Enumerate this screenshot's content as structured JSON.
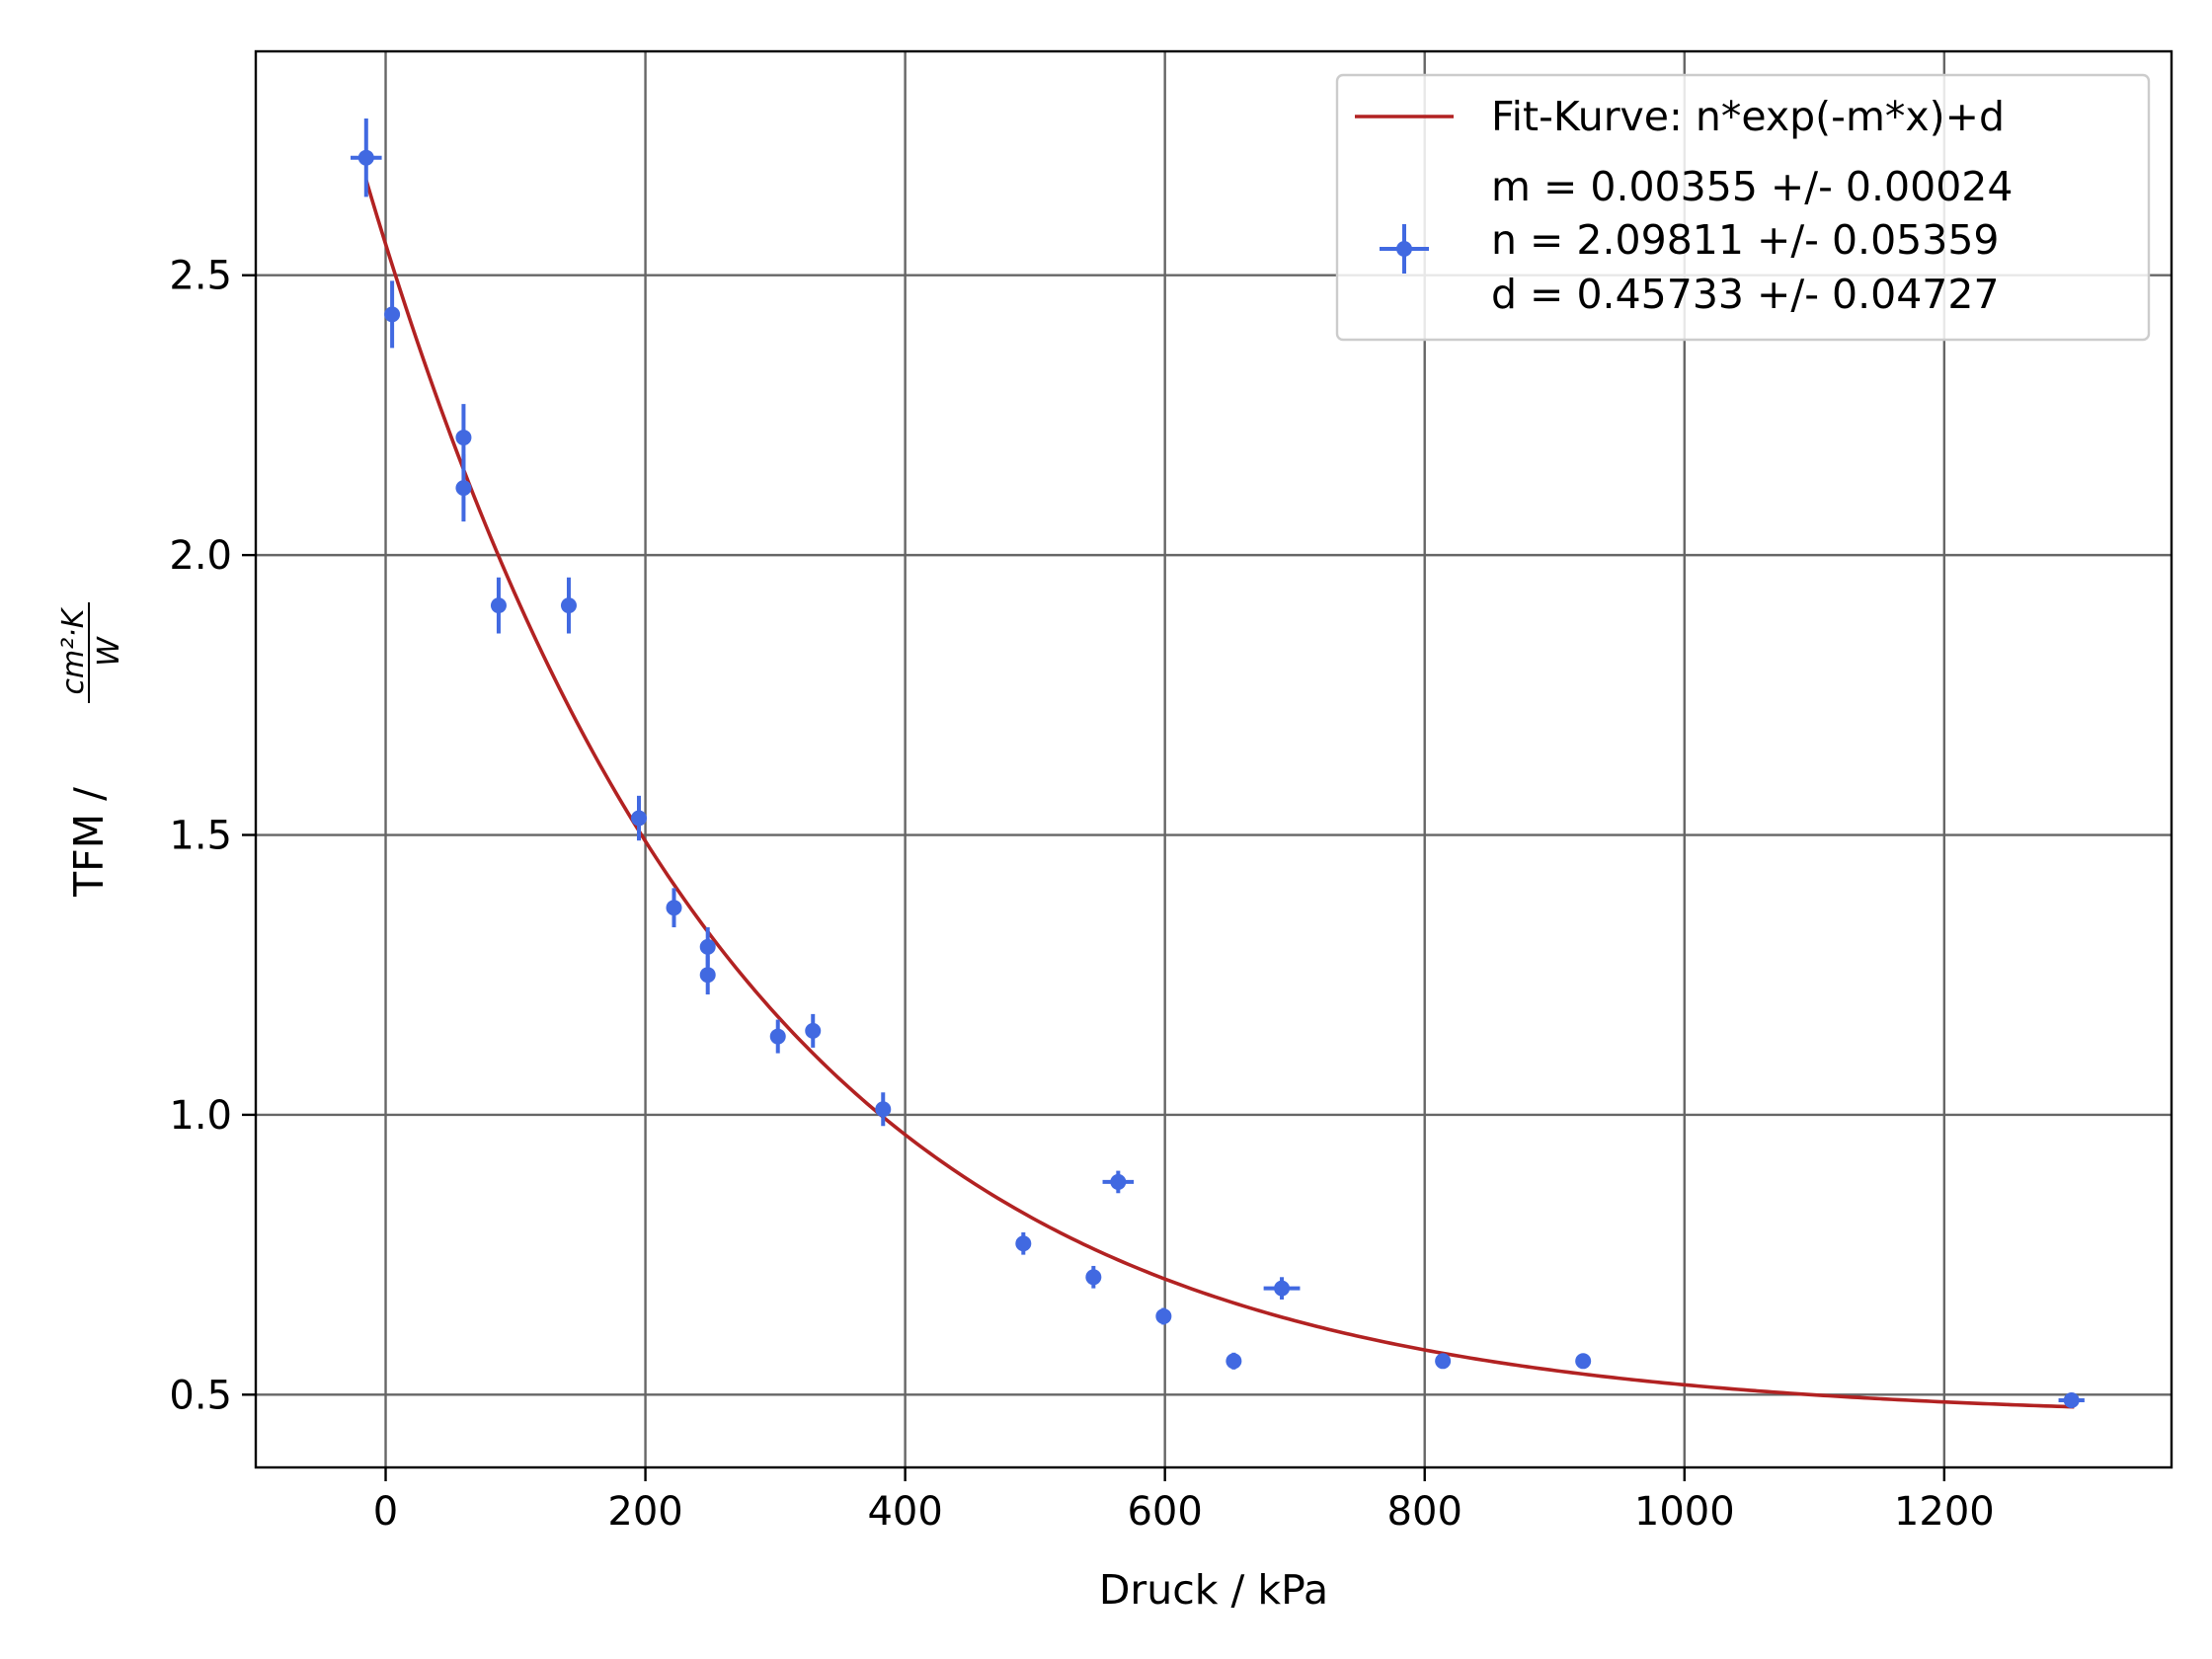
{
  "chart_data": {
    "type": "scatter",
    "xlabel": "Druck / kPa",
    "ylabel": "TFM /",
    "ylabel_fraction": {
      "numerator": "cm²·K",
      "denominator": "W"
    },
    "xlim": [
      -100,
      1375
    ],
    "ylim": [
      0.37,
      2.9
    ],
    "xticks": [
      0,
      200,
      400,
      600,
      800,
      1000,
      1200
    ],
    "xtick_labels": [
      "0",
      "200",
      "400",
      "600",
      "800",
      "1000",
      "1200"
    ],
    "yticks": [
      0.5,
      1.0,
      1.5,
      2.0,
      2.5
    ],
    "ytick_labels": [
      "0.5",
      "1.0",
      "1.5",
      "2.0",
      "2.5"
    ],
    "grid": true,
    "legend_position": "top-right",
    "colors": {
      "fit": "#b22222",
      "data": "#4169e1",
      "grid": "#666666"
    },
    "series": [
      {
        "name": "Fit-Kurve: n*exp(-m*x)+d",
        "kind": "line",
        "function": "n*exp(-m*x)+d",
        "params": {
          "m": 0.00355,
          "n": 2.09811,
          "d": 0.45733
        },
        "x_range": [
          -15,
          1300
        ]
      },
      {
        "legend_lines": [
          "m = 0.00355 +/- 0.00024",
          "n = 2.09811 +/- 0.05359",
          "d = 0.45733 +/- 0.04727"
        ],
        "kind": "errorbar",
        "points": [
          {
            "x": -15,
            "y": 2.71,
            "xerr": 12,
            "yerr": 0.07
          },
          {
            "x": 5,
            "y": 2.43,
            "xerr": 2,
            "yerr": 0.06
          },
          {
            "x": 60,
            "y": 2.21,
            "xerr": 2,
            "yerr": 0.06
          },
          {
            "x": 60,
            "y": 2.12,
            "xerr": 2,
            "yerr": 0.06
          },
          {
            "x": 87,
            "y": 1.91,
            "xerr": 2,
            "yerr": 0.05
          },
          {
            "x": 141,
            "y": 1.91,
            "xerr": 2,
            "yerr": 0.05
          },
          {
            "x": 195,
            "y": 1.53,
            "xerr": 3,
            "yerr": 0.04
          },
          {
            "x": 222,
            "y": 1.37,
            "xerr": 2,
            "yerr": 0.035
          },
          {
            "x": 248,
            "y": 1.3,
            "xerr": 2,
            "yerr": 0.035
          },
          {
            "x": 248,
            "y": 1.25,
            "xerr": 2,
            "yerr": 0.035
          },
          {
            "x": 302,
            "y": 1.14,
            "xerr": 3,
            "yerr": 0.03
          },
          {
            "x": 329,
            "y": 1.15,
            "xerr": 2,
            "yerr": 0.03
          },
          {
            "x": 383,
            "y": 1.01,
            "xerr": 5,
            "yerr": 0.03
          },
          {
            "x": 491,
            "y": 0.77,
            "xerr": 3,
            "yerr": 0.02
          },
          {
            "x": 545,
            "y": 0.71,
            "xerr": 4,
            "yerr": 0.02
          },
          {
            "x": 564,
            "y": 0.88,
            "xerr": 12,
            "yerr": 0.02
          },
          {
            "x": 599,
            "y": 0.64,
            "xerr": 2,
            "yerr": 0.015
          },
          {
            "x": 653,
            "y": 0.56,
            "xerr": 2,
            "yerr": 0.015
          },
          {
            "x": 690,
            "y": 0.69,
            "xerr": 14,
            "yerr": 0.02
          },
          {
            "x": 814,
            "y": 0.56,
            "xerr": 4,
            "yerr": 0.012
          },
          {
            "x": 922,
            "y": 0.56,
            "xerr": 4,
            "yerr": 0.012
          },
          {
            "x": 1298,
            "y": 0.49,
            "xerr": 10,
            "yerr": 0.012
          }
        ]
      }
    ]
  }
}
